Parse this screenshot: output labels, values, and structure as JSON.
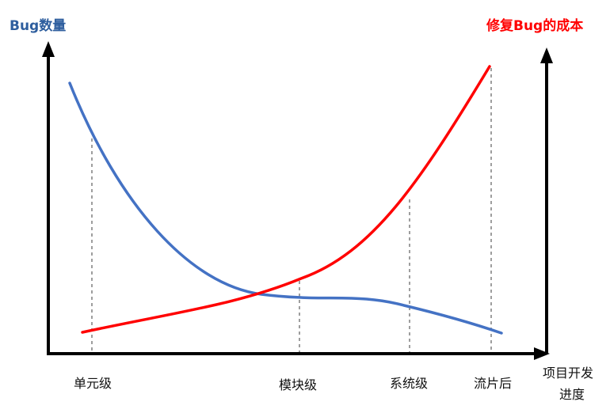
{
  "diagram": {
    "left_axis_title": "Bug数量",
    "right_axis_title": "修复Bug的成本",
    "x_axis_title_line1": "项目开发",
    "x_axis_title_line2": "进度",
    "stages": [
      "单元级",
      "模块级",
      "系统级",
      "流片后"
    ],
    "series": [
      {
        "name": "Bug数量",
        "color": "#4472c4"
      },
      {
        "name": "修复Bug的成本",
        "color": "#ff0000"
      }
    ],
    "colors": {
      "left_title": "#2e5e9e",
      "right_title": "#ff0000",
      "axis": "#000000",
      "guide": "#7f7f7f"
    }
  }
}
